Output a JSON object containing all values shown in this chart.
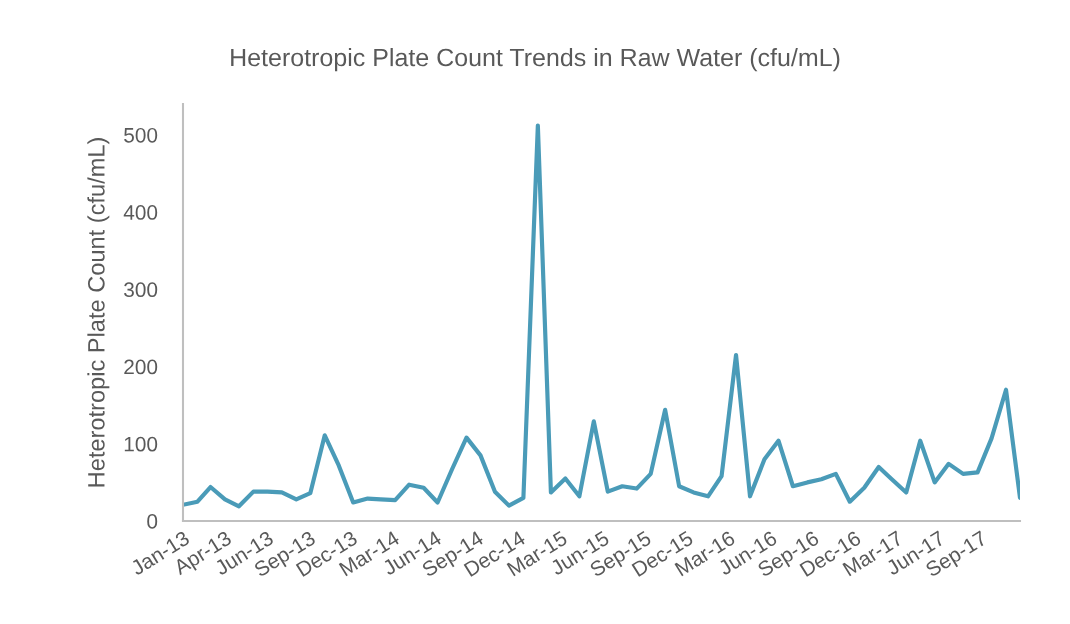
{
  "chart_data": {
    "type": "line",
    "title": "Heterotropic Plate Count Trends in Raw Water (cfu/mL)",
    "ylabel": "Heterotropic Plate Count (cfu/mL)",
    "x": [
      "2013-01",
      "2013-02",
      "2013-03",
      "2013-04",
      "2013-05",
      "2013-06",
      "2013-07",
      "2013-08",
      "2013-09",
      "2013-10",
      "2013-11",
      "2013-12",
      "2014-01",
      "2014-02",
      "2014-03",
      "2014-04",
      "2014-05",
      "2014-06",
      "2014-07",
      "2014-08",
      "2014-09",
      "2014-10",
      "2014-11",
      "2014-12",
      "2015-01",
      "2015-02",
      "2015-03",
      "2015-04",
      "2015-05",
      "2015-06",
      "2015-07",
      "2015-08",
      "2015-09",
      "2015-10",
      "2015-11",
      "2015-12",
      "2016-01",
      "2016-02",
      "2016-03",
      "2016-04",
      "2016-05",
      "2016-06",
      "2016-07",
      "2016-08",
      "2016-09",
      "2016-10",
      "2016-11",
      "2016-12",
      "2017-01",
      "2017-02",
      "2017-03",
      "2017-04",
      "2017-05",
      "2017-06",
      "2017-07",
      "2017-08",
      "2017-09",
      "2017-10",
      "2017-11",
      "2017-12"
    ],
    "series": [
      {
        "color": "#4a9bb8",
        "values": [
          21,
          25,
          44,
          28,
          19,
          38,
          38,
          37,
          28,
          36,
          111,
          72,
          24,
          29,
          28,
          27,
          47,
          43,
          24,
          67,
          108,
          85,
          38,
          20,
          30,
          512,
          37,
          55,
          32,
          129,
          38,
          45,
          42,
          61,
          144,
          45,
          37,
          32,
          58,
          215,
          32,
          80,
          104,
          45,
          50,
          54,
          61,
          25,
          43,
          70,
          54,
          37,
          104,
          50,
          74,
          61,
          63,
          107,
          170,
          30
        ]
      }
    ],
    "xlim": [
      "2013-01-01",
      "2017-12-01"
    ],
    "xticks": [
      {
        "value": "2013-01-01",
        "label": "Jan-13"
      },
      {
        "value": "2013-04-01",
        "label": "Apr-13"
      },
      {
        "value": "2013-06-30",
        "label": "Jun-13"
      },
      {
        "value": "2013-09-28",
        "label": "Sep-13"
      },
      {
        "value": "2013-12-27",
        "label": "Dec-13"
      },
      {
        "value": "2014-03-27",
        "label": "Mar-14"
      },
      {
        "value": "2014-06-25",
        "label": "Jun-14"
      },
      {
        "value": "2014-09-23",
        "label": "Sep-14"
      },
      {
        "value": "2014-12-22",
        "label": "Dec-14"
      },
      {
        "value": "2015-03-22",
        "label": "Mar-15"
      },
      {
        "value": "2015-06-20",
        "label": "Jun-15"
      },
      {
        "value": "2015-09-18",
        "label": "Sep-15"
      },
      {
        "value": "2015-12-17",
        "label": "Dec-15"
      },
      {
        "value": "2016-03-16",
        "label": "Mar-16"
      },
      {
        "value": "2016-06-14",
        "label": "Jun-16"
      },
      {
        "value": "2016-09-12",
        "label": "Sep-16"
      },
      {
        "value": "2016-12-11",
        "label": "Dec-16"
      },
      {
        "value": "2017-03-11",
        "label": "Mar-17"
      },
      {
        "value": "2017-06-09",
        "label": "Jun-17"
      },
      {
        "value": "2017-09-07",
        "label": "Sep-17"
      }
    ],
    "ylim": [
      0,
      540
    ],
    "yticks": [
      0,
      100,
      200,
      300,
      400,
      500
    ],
    "grid": false,
    "legend": false,
    "marker": "none",
    "line_style": "solid"
  }
}
